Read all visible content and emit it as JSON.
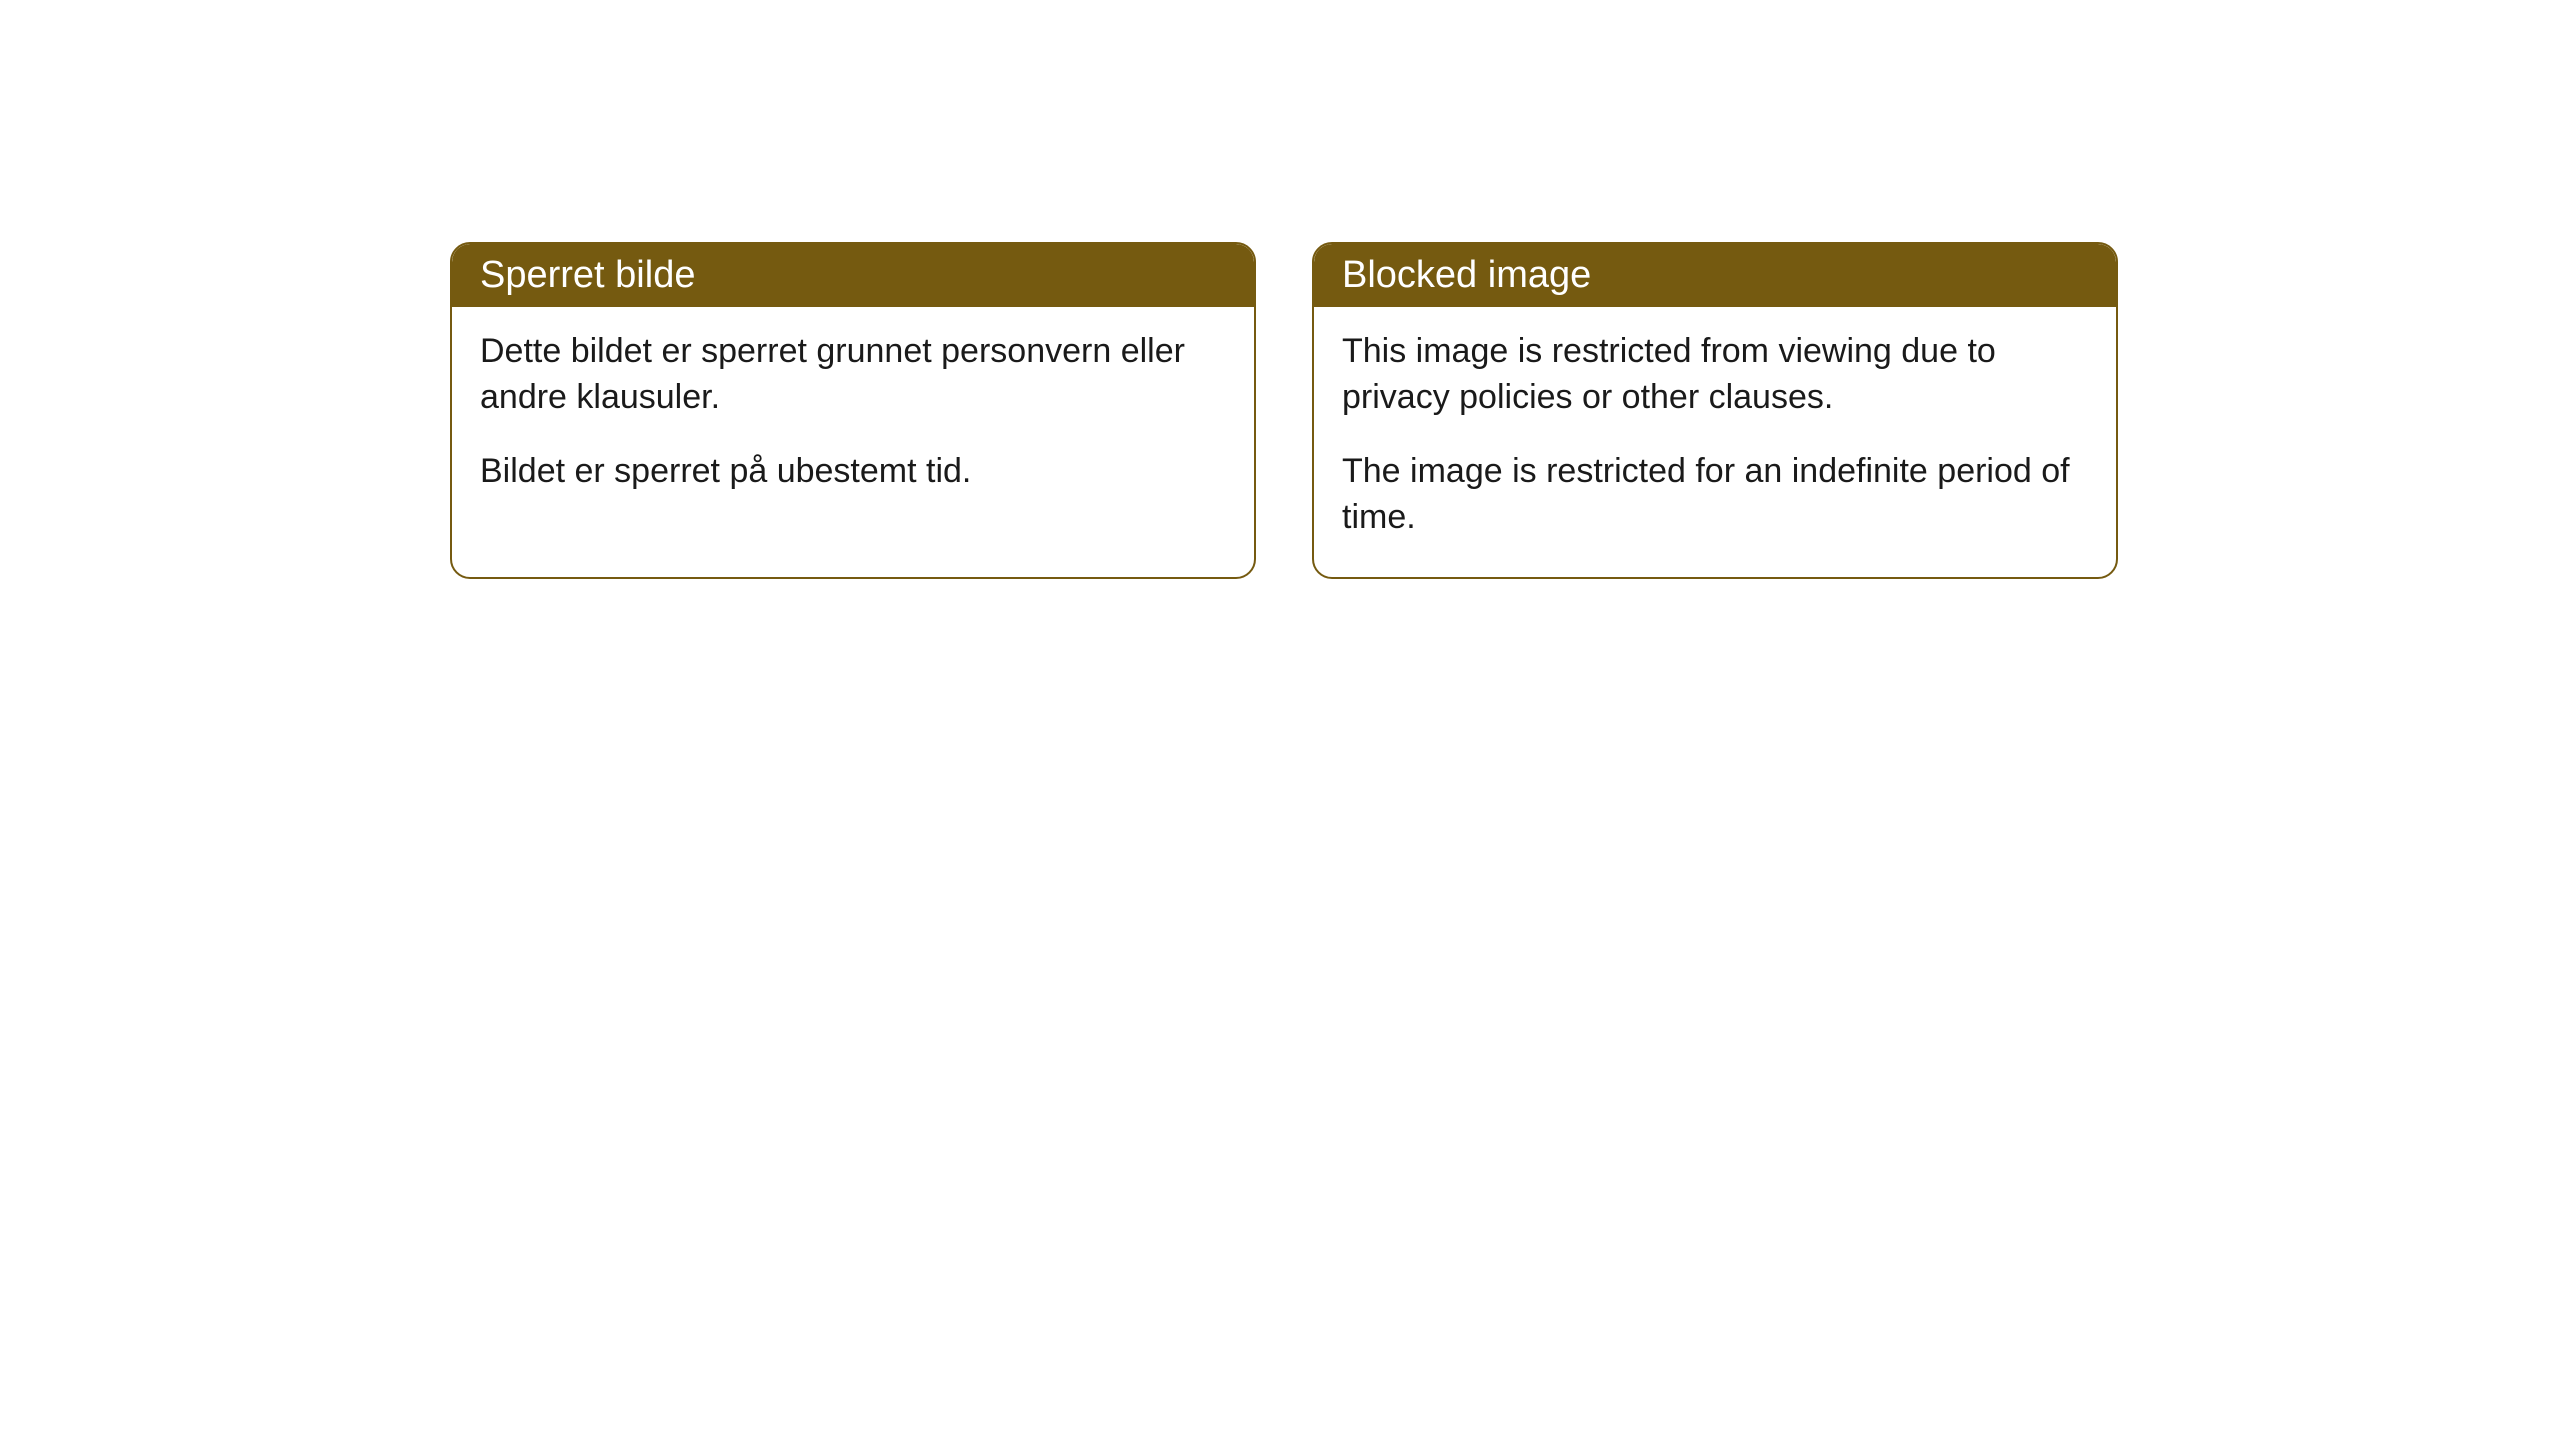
{
  "cards": [
    {
      "title": "Sperret bilde",
      "paragraph1": "Dette bildet er sperret grunnet personvern eller andre klausuler.",
      "paragraph2": "Bildet er sperret på ubestemt tid."
    },
    {
      "title": "Blocked image",
      "paragraph1": "This image is restricted from viewing due to privacy policies or other clauses.",
      "paragraph2": "The image is restricted for an indefinite period of time."
    }
  ],
  "style": {
    "header_bg": "#755a10",
    "header_color": "#ffffff",
    "border_color": "#755a10",
    "body_bg": "#ffffff",
    "text_color": "#1a1a1a",
    "border_radius": 20,
    "title_fontsize": 38,
    "body_fontsize": 34
  }
}
